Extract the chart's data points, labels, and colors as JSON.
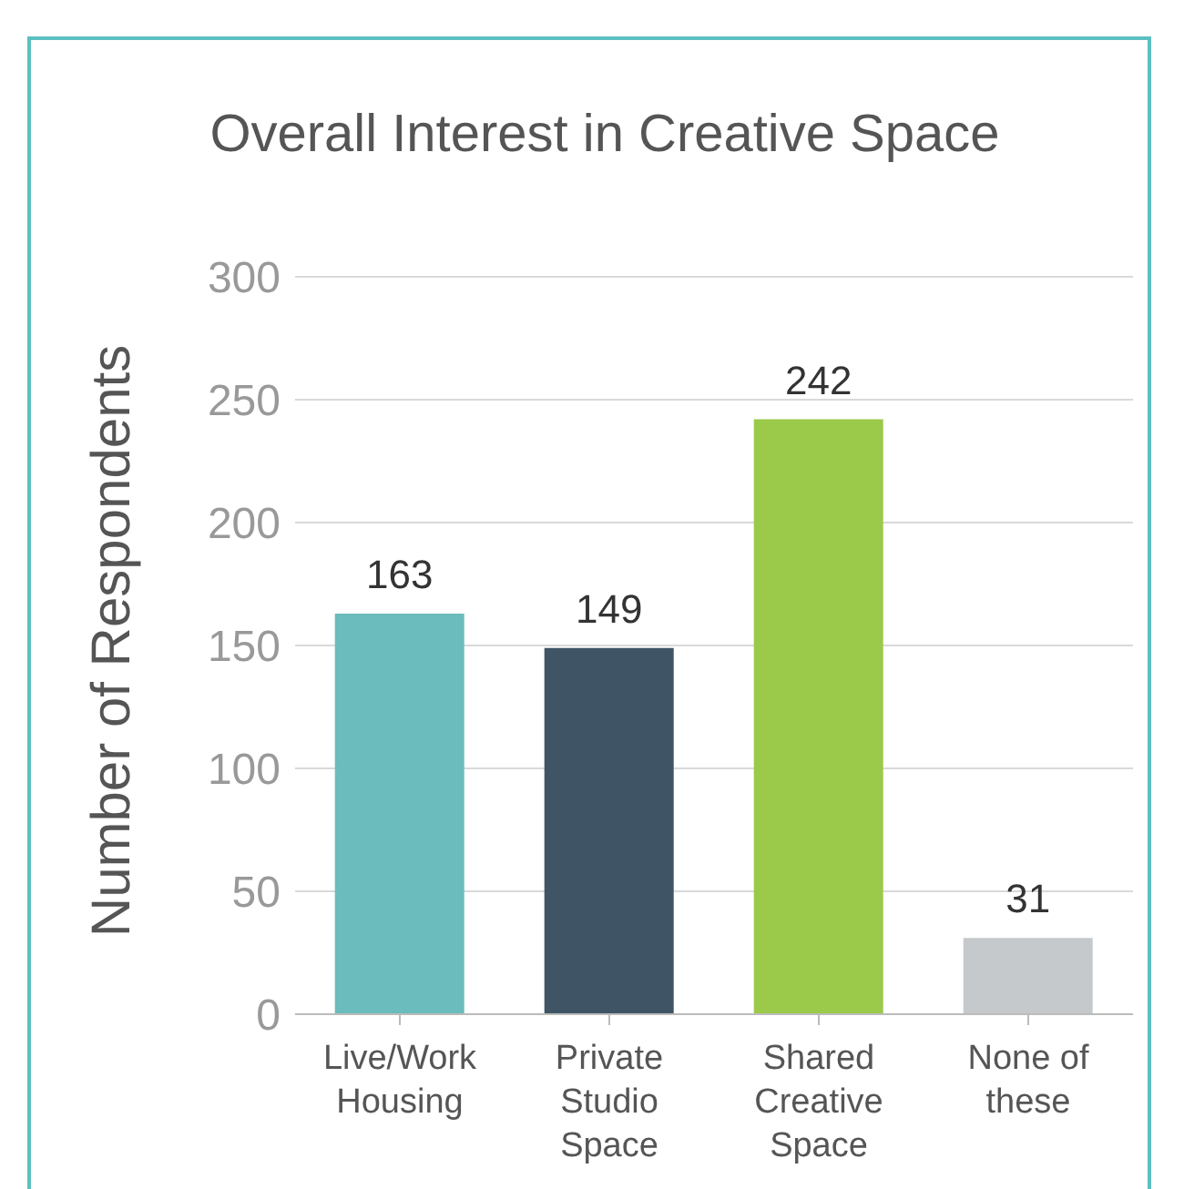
{
  "chart_data": {
    "type": "bar",
    "title": "Overall Interest in Creative Space",
    "ylabel": "Number of Respondents",
    "categories": [
      "Live/Work Housing",
      "Private Studio Space",
      "Shared Creative Space",
      "None of these"
    ],
    "values": [
      163,
      149,
      242,
      31
    ],
    "colors": [
      "#6bbcbc",
      "#3f5565",
      "#9bc94a",
      "#c5c9cc"
    ],
    "ylim": [
      0,
      300
    ],
    "yticks": [
      0,
      50,
      100,
      150,
      200,
      250,
      300
    ],
    "grid": "y",
    "data_labels": true
  }
}
